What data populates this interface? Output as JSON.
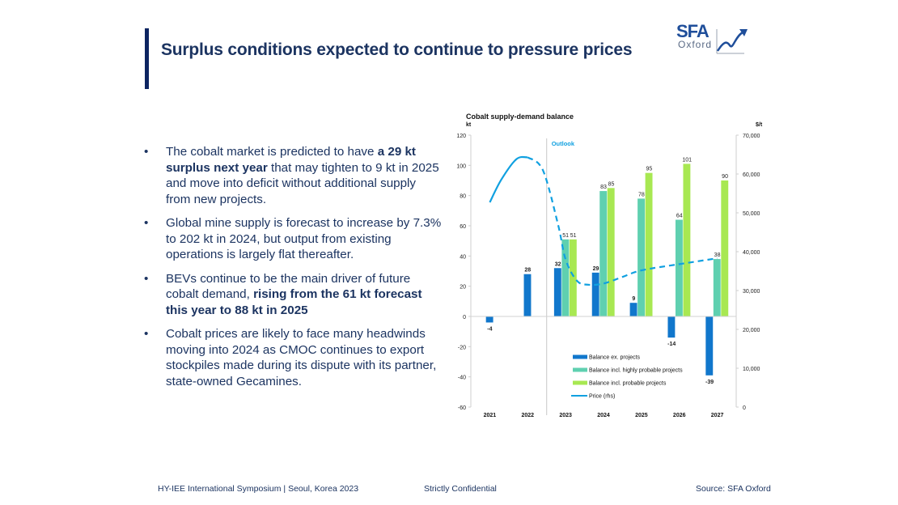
{
  "slide": {
    "title": "Surplus conditions expected to continue to pressure prices",
    "logo": {
      "name": "SFA",
      "subtitle": "Oxford"
    },
    "bullets": [
      {
        "parts": [
          {
            "text": "The cobalt market is predicted to have ",
            "bold": false
          },
          {
            "text": "a 29 kt surplus next year",
            "bold": true
          },
          {
            "text": " that may tighten to 9 kt in 2025 and move into deficit without additional supply from new projects.",
            "bold": false
          }
        ]
      },
      {
        "parts": [
          {
            "text": "Global mine supply is forecast to increase by 7.3% to 202 kt in 2024, but output from existing operations is largely flat thereafter.",
            "bold": false
          }
        ]
      },
      {
        "parts": [
          {
            "text": "BEVs continue to be the main driver of future cobalt demand, ",
            "bold": false
          },
          {
            "text": "rising from the 61 kt forecast this year to 88 kt in 2025",
            "bold": true
          }
        ]
      },
      {
        "parts": [
          {
            "text": "Cobalt prices are likely to face many headwinds moving into 2024 as CMOC continues to export stockpiles made during its dispute with its partner, state-owned Gecamines.",
            "bold": false
          }
        ]
      }
    ],
    "bullet_glyph": "•",
    "footer": {
      "left": "HY-IEE International Symposium | Seoul, Korea 2023",
      "center": "Strictly Confidential",
      "right": "Source: SFA Oxford"
    }
  },
  "colors": {
    "title": "#1c3461",
    "accent_bar": "#0c2461",
    "series_ex": "#1177cc",
    "series_highly": "#5fd0b0",
    "series_probable": "#a8e852",
    "price": "#10a0e0"
  },
  "chart_data": {
    "type": "bar",
    "title": "Cobalt supply-demand balance",
    "ylabel": "kt",
    "y2label": "$/t",
    "ylim": [
      -60,
      120
    ],
    "yticks": [
      -60,
      -40,
      -20,
      0,
      20,
      40,
      60,
      80,
      100,
      120
    ],
    "y2lim": [
      0,
      70000
    ],
    "y2ticks": [
      "0",
      "10,000",
      "20,000",
      "30,000",
      "40,000",
      "50,000",
      "60,000",
      "70,000"
    ],
    "y2tick_values": [
      0,
      10000,
      20000,
      30000,
      40000,
      50000,
      60000,
      70000
    ],
    "categories": [
      "2021",
      "2022",
      "2023",
      "2024",
      "2025",
      "2026",
      "2027"
    ],
    "outlook_label": "Outlook",
    "outlook_start_index": 2,
    "series": [
      {
        "name": "Balance ex. projects",
        "values": [
          -4,
          28,
          32,
          29,
          9,
          -14,
          -39
        ]
      },
      {
        "name": "Balance incl. highly probable projects",
        "values": [
          null,
          null,
          51,
          83,
          78,
          64,
          38
        ]
      },
      {
        "name": "Balance incl. probable projects",
        "values": [
          null,
          null,
          51,
          85,
          95,
          101,
          90
        ]
      }
    ],
    "price_series": {
      "name": "Price (rhs)",
      "axis": "right",
      "x": [
        0,
        0.3,
        0.7,
        1.0,
        1.4,
        1.8,
        2.0,
        2.3,
        2.6,
        3.0,
        3.5,
        4.0,
        5.0,
        6.0
      ],
      "values": [
        52700,
        58500,
        63800,
        64300,
        61000,
        47000,
        38000,
        32500,
        31500,
        31800,
        33500,
        35200,
        36800,
        38300
      ],
      "solid_until_x": 1.0
    },
    "grid": false,
    "legend_position": "bottom-center"
  }
}
